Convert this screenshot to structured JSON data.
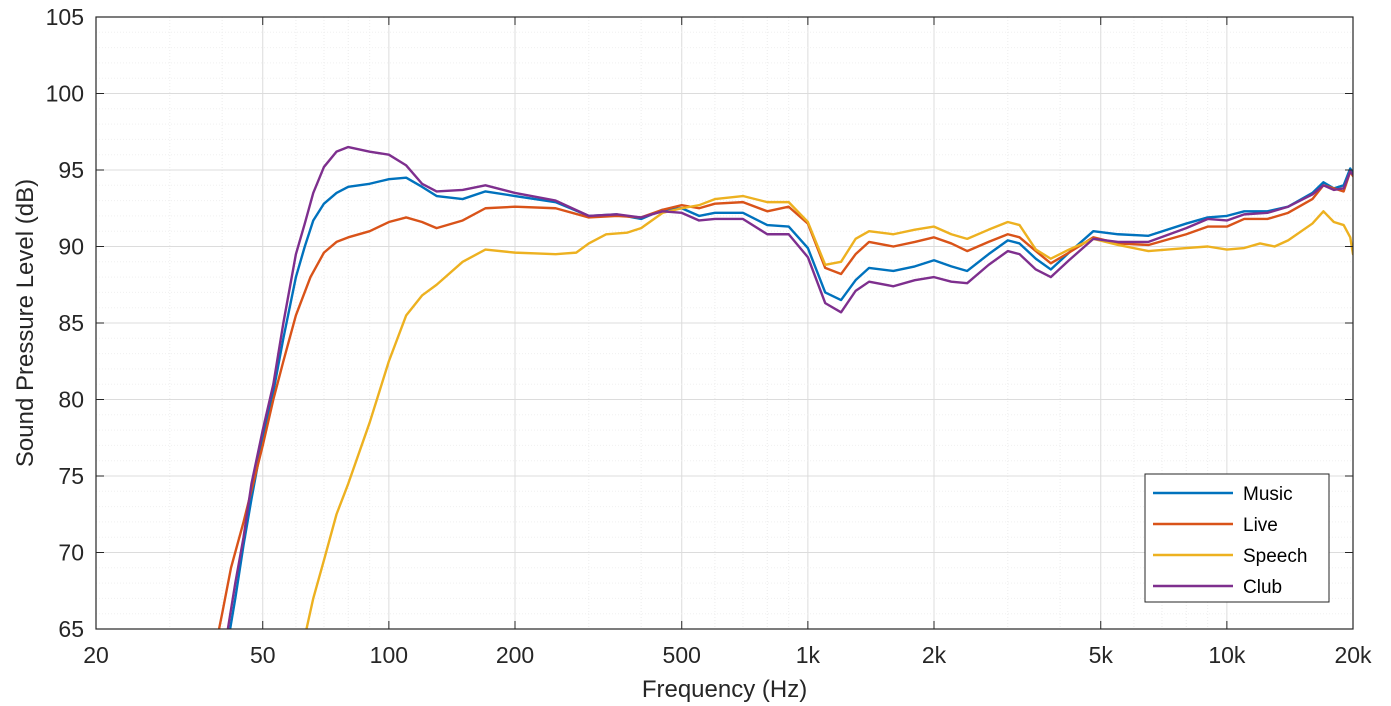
{
  "chart_data": {
    "type": "line",
    "xlabel": "Frequency (Hz)",
    "ylabel": "Sound Pressure Level (dB)",
    "xscale": "log",
    "xlim": [
      20,
      20000
    ],
    "ylim": [
      65,
      105
    ],
    "grid": true,
    "minor_grid": true,
    "legend_position": "bottom-right",
    "x_ticks": [
      20,
      50,
      100,
      200,
      500,
      1000,
      2000,
      5000,
      10000,
      20000
    ],
    "x_tick_labels": [
      "20",
      "50",
      "100",
      "200",
      "500",
      "1k",
      "2k",
      "5k",
      "10k",
      "20k"
    ],
    "y_ticks": [
      65,
      70,
      75,
      80,
      85,
      90,
      95,
      100,
      105
    ],
    "y_tick_labels": [
      "65",
      "70",
      "75",
      "80",
      "85",
      "90",
      "95",
      "100",
      "105"
    ],
    "series": [
      {
        "name": "Music",
        "color": "#0072BD",
        "points": [
          [
            41.5,
            64.5
          ],
          [
            43,
            67
          ],
          [
            45,
            70.5
          ],
          [
            47,
            73.5
          ],
          [
            50,
            77.5
          ],
          [
            53,
            80.5
          ],
          [
            56,
            84
          ],
          [
            60,
            88
          ],
          [
            63,
            90
          ],
          [
            66,
            91.7
          ],
          [
            70,
            92.8
          ],
          [
            75,
            93.5
          ],
          [
            80,
            93.9
          ],
          [
            90,
            94.1
          ],
          [
            100,
            94.4
          ],
          [
            110,
            94.5
          ],
          [
            120,
            93.9
          ],
          [
            130,
            93.3
          ],
          [
            150,
            93.1
          ],
          [
            170,
            93.6
          ],
          [
            200,
            93.3
          ],
          [
            250,
            92.9
          ],
          [
            300,
            92.0
          ],
          [
            350,
            92.1
          ],
          [
            400,
            91.8
          ],
          [
            450,
            92.4
          ],
          [
            500,
            92.5
          ],
          [
            550,
            92.0
          ],
          [
            600,
            92.2
          ],
          [
            700,
            92.2
          ],
          [
            800,
            91.4
          ],
          [
            900,
            91.3
          ],
          [
            1000,
            89.9
          ],
          [
            1100,
            87.0
          ],
          [
            1200,
            86.5
          ],
          [
            1300,
            87.8
          ],
          [
            1400,
            88.6
          ],
          [
            1600,
            88.4
          ],
          [
            1800,
            88.7
          ],
          [
            2000,
            89.1
          ],
          [
            2200,
            88.7
          ],
          [
            2400,
            88.4
          ],
          [
            2700,
            89.5
          ],
          [
            3000,
            90.4
          ],
          [
            3200,
            90.2
          ],
          [
            3500,
            89.2
          ],
          [
            3800,
            88.5
          ],
          [
            4200,
            89.6
          ],
          [
            4800,
            91.0
          ],
          [
            5500,
            90.8
          ],
          [
            6500,
            90.7
          ],
          [
            8000,
            91.5
          ],
          [
            9000,
            91.9
          ],
          [
            10000,
            92.0
          ],
          [
            11000,
            92.3
          ],
          [
            12500,
            92.3
          ],
          [
            14000,
            92.6
          ],
          [
            16000,
            93.5
          ],
          [
            17000,
            94.2
          ],
          [
            18000,
            93.8
          ],
          [
            19000,
            94.0
          ],
          [
            19700,
            95.1
          ],
          [
            20000,
            94.8
          ]
        ]
      },
      {
        "name": "Live",
        "color": "#D95319",
        "points": [
          [
            39,
            64.5
          ],
          [
            40,
            66
          ],
          [
            42,
            69
          ],
          [
            45,
            72
          ],
          [
            50,
            77
          ],
          [
            53,
            80
          ],
          [
            56,
            82.5
          ],
          [
            60,
            85.5
          ],
          [
            65,
            88
          ],
          [
            70,
            89.6
          ],
          [
            75,
            90.3
          ],
          [
            80,
            90.6
          ],
          [
            90,
            91.0
          ],
          [
            100,
            91.6
          ],
          [
            110,
            91.9
          ],
          [
            120,
            91.6
          ],
          [
            130,
            91.2
          ],
          [
            150,
            91.7
          ],
          [
            170,
            92.5
          ],
          [
            200,
            92.6
          ],
          [
            250,
            92.5
          ],
          [
            300,
            91.9
          ],
          [
            350,
            92.0
          ],
          [
            400,
            91.9
          ],
          [
            450,
            92.4
          ],
          [
            500,
            92.7
          ],
          [
            550,
            92.5
          ],
          [
            600,
            92.8
          ],
          [
            700,
            92.9
          ],
          [
            800,
            92.3
          ],
          [
            900,
            92.6
          ],
          [
            1000,
            91.5
          ],
          [
            1100,
            88.6
          ],
          [
            1200,
            88.2
          ],
          [
            1300,
            89.5
          ],
          [
            1400,
            90.3
          ],
          [
            1600,
            90.0
          ],
          [
            1800,
            90.3
          ],
          [
            2000,
            90.6
          ],
          [
            2200,
            90.2
          ],
          [
            2400,
            89.7
          ],
          [
            2700,
            90.3
          ],
          [
            3000,
            90.8
          ],
          [
            3200,
            90.6
          ],
          [
            3500,
            89.7
          ],
          [
            3800,
            88.9
          ],
          [
            4200,
            89.6
          ],
          [
            4800,
            90.6
          ],
          [
            5500,
            90.2
          ],
          [
            6500,
            90.1
          ],
          [
            8000,
            90.8
          ],
          [
            9000,
            91.3
          ],
          [
            10000,
            91.3
          ],
          [
            11000,
            91.8
          ],
          [
            12500,
            91.8
          ],
          [
            14000,
            92.2
          ],
          [
            16000,
            93.1
          ],
          [
            17000,
            94.0
          ],
          [
            18000,
            93.8
          ],
          [
            19000,
            93.6
          ],
          [
            19700,
            94.9
          ],
          [
            20000,
            94.6
          ]
        ]
      },
      {
        "name": "Speech",
        "color": "#EDB120",
        "points": [
          [
            63,
            64.5
          ],
          [
            66,
            67
          ],
          [
            70,
            69.5
          ],
          [
            75,
            72.5
          ],
          [
            80,
            74.5
          ],
          [
            90,
            78.5
          ],
          [
            100,
            82.5
          ],
          [
            110,
            85.5
          ],
          [
            120,
            86.8
          ],
          [
            130,
            87.5
          ],
          [
            150,
            89
          ],
          [
            170,
            89.8
          ],
          [
            200,
            89.6
          ],
          [
            250,
            89.5
          ],
          [
            280,
            89.6
          ],
          [
            300,
            90.2
          ],
          [
            330,
            90.8
          ],
          [
            370,
            90.9
          ],
          [
            400,
            91.2
          ],
          [
            450,
            92.2
          ],
          [
            500,
            92.5
          ],
          [
            550,
            92.7
          ],
          [
            600,
            93.1
          ],
          [
            700,
            93.3
          ],
          [
            800,
            92.9
          ],
          [
            900,
            92.9
          ],
          [
            1000,
            91.6
          ],
          [
            1100,
            88.8
          ],
          [
            1200,
            89.0
          ],
          [
            1300,
            90.5
          ],
          [
            1400,
            91.0
          ],
          [
            1600,
            90.8
          ],
          [
            1800,
            91.1
          ],
          [
            2000,
            91.3
          ],
          [
            2200,
            90.8
          ],
          [
            2400,
            90.5
          ],
          [
            2700,
            91.1
          ],
          [
            3000,
            91.6
          ],
          [
            3200,
            91.4
          ],
          [
            3500,
            89.8
          ],
          [
            3800,
            89.2
          ],
          [
            4200,
            89.8
          ],
          [
            4800,
            90.5
          ],
          [
            5500,
            90.1
          ],
          [
            6500,
            89.7
          ],
          [
            8000,
            89.9
          ],
          [
            9000,
            90.0
          ],
          [
            10000,
            89.8
          ],
          [
            11000,
            89.9
          ],
          [
            12000,
            90.2
          ],
          [
            13000,
            90.0
          ],
          [
            14000,
            90.4
          ],
          [
            16000,
            91.5
          ],
          [
            17000,
            92.3
          ],
          [
            18000,
            91.6
          ],
          [
            19000,
            91.4
          ],
          [
            19700,
            90.6
          ],
          [
            20000,
            89.5
          ]
        ]
      },
      {
        "name": "Club",
        "color": "#7E2F8E",
        "points": [
          [
            41,
            64.5
          ],
          [
            43,
            68
          ],
          [
            45,
            71
          ],
          [
            47,
            74.5
          ],
          [
            50,
            78
          ],
          [
            53,
            81
          ],
          [
            56,
            85
          ],
          [
            60,
            89.5
          ],
          [
            63,
            91.5
          ],
          [
            66,
            93.5
          ],
          [
            70,
            95.2
          ],
          [
            75,
            96.2
          ],
          [
            80,
            96.5
          ],
          [
            90,
            96.2
          ],
          [
            100,
            96.0
          ],
          [
            110,
            95.3
          ],
          [
            120,
            94.1
          ],
          [
            130,
            93.6
          ],
          [
            150,
            93.7
          ],
          [
            170,
            94.0
          ],
          [
            200,
            93.5
          ],
          [
            250,
            93.0
          ],
          [
            300,
            92.0
          ],
          [
            350,
            92.1
          ],
          [
            400,
            91.9
          ],
          [
            450,
            92.3
          ],
          [
            500,
            92.2
          ],
          [
            550,
            91.7
          ],
          [
            600,
            91.8
          ],
          [
            700,
            91.8
          ],
          [
            800,
            90.8
          ],
          [
            900,
            90.8
          ],
          [
            1000,
            89.3
          ],
          [
            1100,
            86.3
          ],
          [
            1200,
            85.7
          ],
          [
            1300,
            87.1
          ],
          [
            1400,
            87.7
          ],
          [
            1600,
            87.4
          ],
          [
            1800,
            87.8
          ],
          [
            2000,
            88.0
          ],
          [
            2200,
            87.7
          ],
          [
            2400,
            87.6
          ],
          [
            2700,
            88.8
          ],
          [
            3000,
            89.7
          ],
          [
            3200,
            89.5
          ],
          [
            3500,
            88.5
          ],
          [
            3800,
            88.0
          ],
          [
            4200,
            89.1
          ],
          [
            4800,
            90.5
          ],
          [
            5500,
            90.3
          ],
          [
            6500,
            90.3
          ],
          [
            8000,
            91.2
          ],
          [
            9000,
            91.8
          ],
          [
            10000,
            91.7
          ],
          [
            11000,
            92.1
          ],
          [
            12500,
            92.2
          ],
          [
            14000,
            92.6
          ],
          [
            16000,
            93.4
          ],
          [
            17000,
            94.0
          ],
          [
            18000,
            93.7
          ],
          [
            19000,
            93.8
          ],
          [
            19700,
            94.9
          ],
          [
            20000,
            94.7
          ]
        ]
      }
    ]
  }
}
